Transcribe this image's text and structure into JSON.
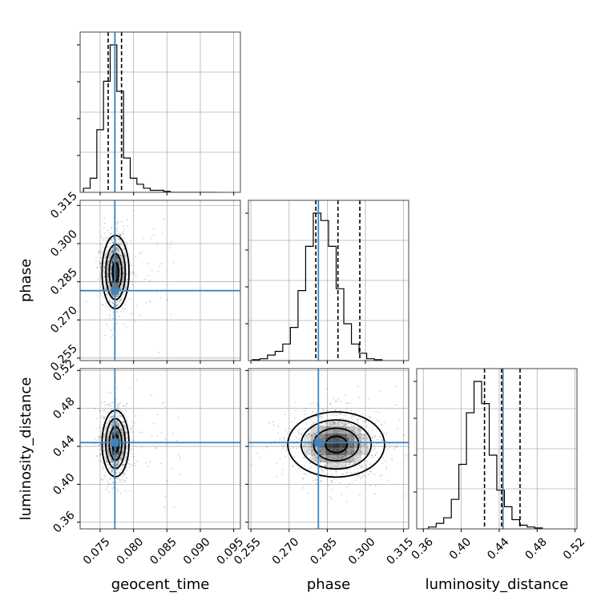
{
  "chart_data": {
    "type": "corner",
    "parameters": [
      "geocent_time",
      "phase",
      "luminosity_distance"
    ],
    "truths": [
      0.0772,
      0.2815,
      0.444
    ],
    "truth_color": "#4682b4",
    "ranges": [
      [
        0.072,
        0.096
      ],
      [
        0.254,
        0.317
      ],
      [
        0.353,
        0.522
      ]
    ],
    "ticks": [
      [
        0.075,
        0.08,
        0.085,
        0.09,
        0.095
      ],
      [
        0.255,
        0.27,
        0.285,
        0.3,
        0.315
      ],
      [
        0.36,
        0.4,
        0.44,
        0.48,
        0.52
      ]
    ],
    "tick_labels": [
      [
        "0.075",
        "0.080",
        "0.085",
        "0.090",
        "0.095"
      ],
      [
        "0.255",
        "0.270",
        "0.285",
        "0.300",
        "0.315"
      ],
      [
        "0.36",
        "0.40",
        "0.44",
        "0.48",
        "0.52"
      ]
    ],
    "quantiles": [
      [
        0.0762,
        0.0772,
        0.0782
      ],
      [
        0.2805,
        0.2892,
        0.2978
      ],
      [
        0.4245,
        0.4425,
        0.462
      ]
    ],
    "histograms": [
      {
        "edges_start": 0.0725,
        "bin_width": 0.001,
        "counts": [
          2,
          7,
          31,
          55,
          73,
          50,
          17,
          7,
          4,
          2,
          1,
          1,
          0.5,
          0,
          0,
          0,
          0,
          0,
          0,
          0
        ]
      },
      {
        "edges_start": 0.2555,
        "bin_width": 0.003,
        "counts": [
          0.5,
          1,
          3,
          5,
          9,
          18,
          38,
          62,
          80,
          76,
          62,
          39,
          20,
          9,
          4,
          1,
          0.5
        ]
      },
      {
        "edges_start": 0.3575,
        "bin_width": 0.008,
        "counts": [
          0,
          1,
          3,
          6,
          16,
          35,
          63,
          80,
          68,
          40,
          21,
          12,
          5,
          2,
          1,
          0.5
        ]
      }
    ],
    "pairs": [
      {
        "x": 0,
        "y": 1,
        "center": [
          0.0773,
          0.2888
        ],
        "sigma": [
          0.0009,
          0.0072
        ],
        "rho": 0.1
      },
      {
        "x": 0,
        "y": 2,
        "center": [
          0.0773,
          0.443
        ],
        "sigma": [
          0.0009,
          0.0175
        ],
        "rho": 0.0
      },
      {
        "x": 1,
        "y": 2,
        "center": [
          0.2885,
          0.442
        ],
        "sigma": [
          0.0085,
          0.0172
        ],
        "rho": 0.0
      }
    ],
    "contour_levels_sigma": [
      0.5,
      1.0,
      1.5,
      2.0
    ],
    "grid": true,
    "legend": "none"
  }
}
